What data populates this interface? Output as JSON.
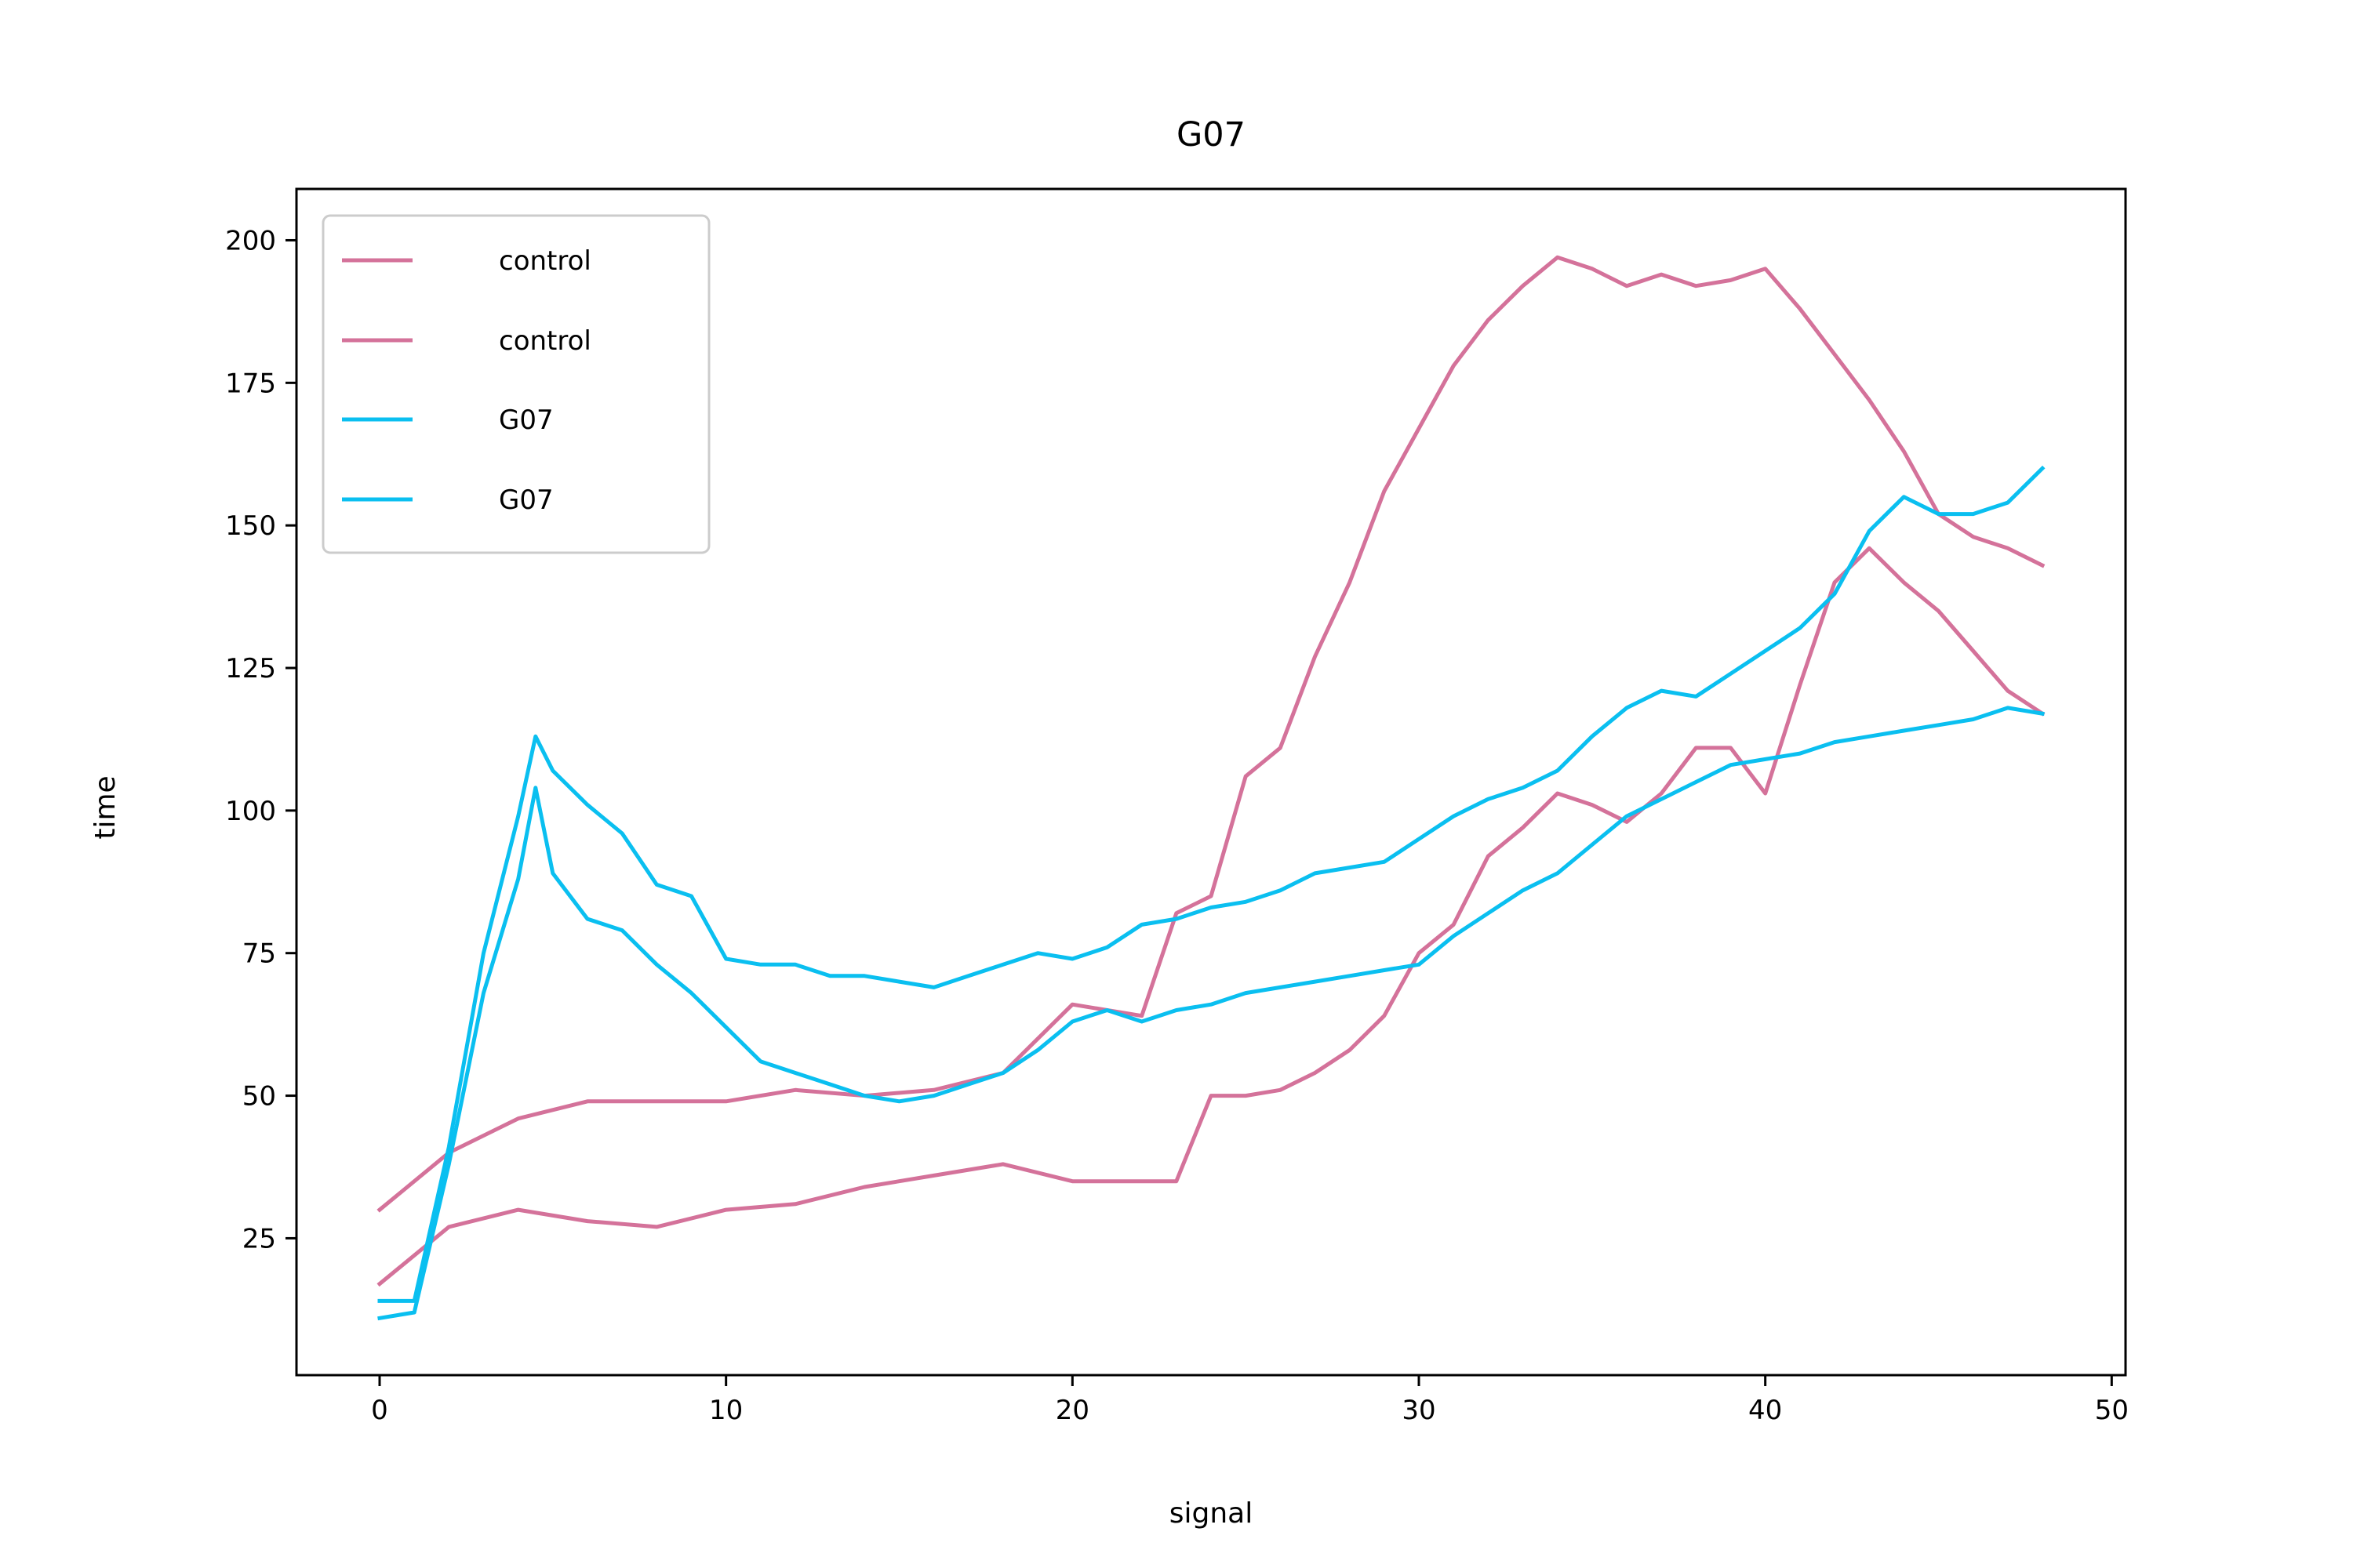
{
  "chart_data": {
    "type": "line",
    "title": "G07",
    "xlabel": "signal",
    "ylabel": "time",
    "xlim": [
      -2.4,
      50.4
    ],
    "ylim": [
      1,
      209
    ],
    "xticks": [
      0,
      10,
      20,
      30,
      40,
      50
    ],
    "yticks": [
      25,
      50,
      75,
      100,
      125,
      150,
      175,
      200
    ],
    "grid": false,
    "legend_position": "top-left",
    "colors": {
      "control": "#d4729a",
      "G07": "#0abff0"
    },
    "series": [
      {
        "name": "control",
        "color": "#d4729a",
        "x": [
          0,
          2,
          4,
          6,
          8,
          10,
          12,
          14,
          16,
          18,
          20,
          22,
          23,
          24,
          25,
          26,
          27,
          28,
          29,
          30,
          31,
          32,
          33,
          34,
          35,
          36,
          37,
          38,
          39,
          40,
          41,
          42,
          43,
          44,
          45,
          46,
          47,
          48
        ],
        "values": [
          30,
          40,
          46,
          49,
          49,
          49,
          51,
          50,
          51,
          54,
          66,
          64,
          82,
          85,
          106,
          111,
          127,
          140,
          156,
          167,
          178,
          186,
          192,
          197,
          195,
          192,
          194,
          192,
          193,
          195,
          188,
          180,
          172,
          163,
          152,
          148,
          146,
          143
        ]
      },
      {
        "name": "control",
        "color": "#d4729a",
        "x": [
          0,
          2,
          4,
          6,
          8,
          10,
          12,
          14,
          16,
          18,
          20,
          22,
          23,
          24,
          25,
          26,
          27,
          28,
          29,
          30,
          31,
          32,
          33,
          34,
          35,
          36,
          37,
          38,
          39,
          40,
          41,
          42,
          43,
          44,
          45,
          46,
          47,
          48
        ],
        "values": [
          17,
          27,
          30,
          28,
          27,
          30,
          31,
          34,
          36,
          38,
          35,
          35,
          35,
          50,
          50,
          51,
          54,
          58,
          64,
          75,
          80,
          92,
          97,
          103,
          101,
          98,
          103,
          111,
          111,
          103,
          122,
          140,
          146,
          140,
          135,
          128,
          121,
          117
        ]
      },
      {
        "name": "G07",
        "color": "#0abff0",
        "x": [
          0,
          1,
          2,
          3,
          4,
          4.5,
          5,
          6,
          7,
          8,
          9,
          10,
          11,
          12,
          13,
          14,
          15,
          16,
          17,
          18,
          19,
          20,
          21,
          22,
          23,
          24,
          25,
          26,
          27,
          28,
          29,
          30,
          31,
          32,
          33,
          34,
          35,
          36,
          37,
          38,
          39,
          40,
          41,
          42,
          43,
          44,
          45,
          46,
          47,
          48
        ],
        "values": [
          14,
          14,
          41,
          75,
          99,
          113,
          107,
          101,
          96,
          87,
          85,
          74,
          73,
          73,
          71,
          71,
          70,
          69,
          71,
          73,
          75,
          74,
          76,
          80,
          81,
          83,
          84,
          86,
          89,
          90,
          91,
          95,
          99,
          102,
          104,
          107,
          113,
          118,
          121,
          120,
          124,
          128,
          132,
          138,
          149,
          155,
          152,
          152,
          154,
          160
        ]
      },
      {
        "name": "G07",
        "color": "#0abff0",
        "x": [
          0,
          1,
          2,
          3,
          4,
          4.5,
          5,
          6,
          7,
          8,
          9,
          10,
          11,
          12,
          13,
          14,
          15,
          16,
          17,
          18,
          19,
          20,
          21,
          22,
          23,
          24,
          25,
          26,
          27,
          28,
          29,
          30,
          31,
          32,
          33,
          34,
          35,
          36,
          37,
          38,
          39,
          40,
          41,
          42,
          43,
          44,
          45,
          46,
          47,
          48
        ],
        "values": [
          11,
          12,
          38,
          68,
          88,
          104,
          89,
          81,
          79,
          73,
          68,
          62,
          56,
          54,
          52,
          50,
          49,
          50,
          52,
          54,
          58,
          63,
          65,
          63,
          65,
          66,
          68,
          69,
          70,
          71,
          72,
          73,
          78,
          82,
          86,
          89,
          94,
          99,
          102,
          105,
          108,
          109,
          110,
          112,
          113,
          114,
          115,
          116,
          118,
          117
        ]
      }
    ]
  },
  "legend": {
    "entries": [
      {
        "label": "control",
        "color": "#d4729a"
      },
      {
        "label": "control",
        "color": "#d4729a"
      },
      {
        "label": "G07",
        "color": "#0abff0"
      },
      {
        "label": "G07",
        "color": "#0abff0"
      }
    ]
  }
}
